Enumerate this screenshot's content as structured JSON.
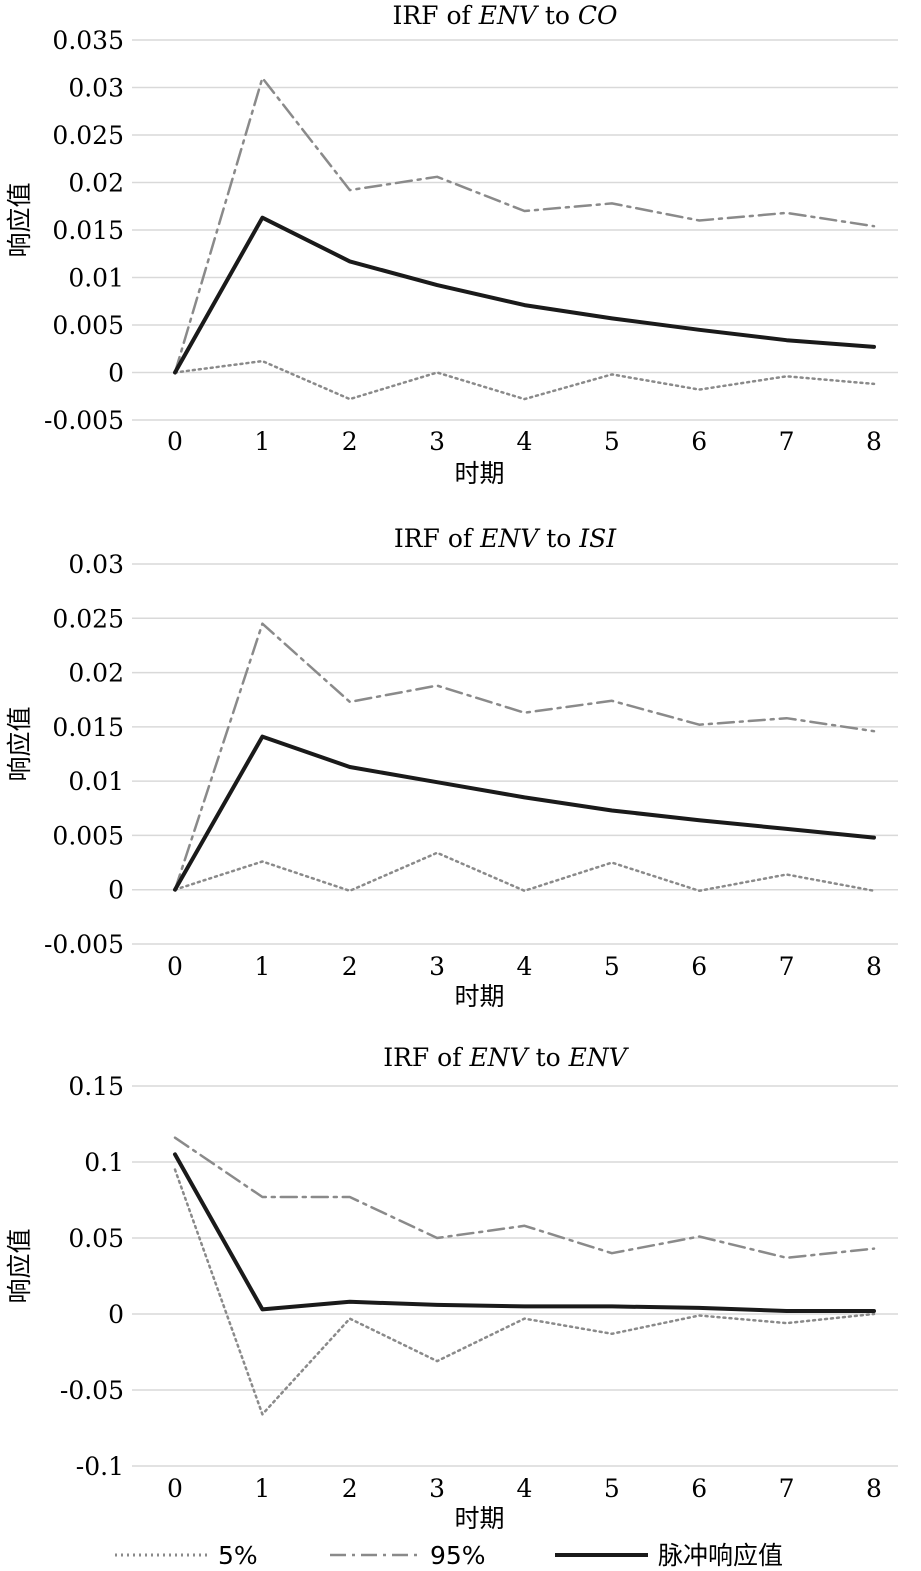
{
  "legend": [
    {
      "label": "5%",
      "style": "dotted",
      "color": "#8a8a8a"
    },
    {
      "label": "95%",
      "style": "dashdot",
      "color": "#8a8a8a"
    },
    {
      "label": "脉冲响应值",
      "style": "solid",
      "color": "#1a1a1a"
    }
  ],
  "chart_data": [
    {
      "type": "line",
      "title": {
        "prefix": "IRF of ",
        "a": "ENV",
        "mid": " to ",
        "b": "CO"
      },
      "xlabel": "时期",
      "ylabel": "响应值",
      "x": [
        0,
        1,
        2,
        3,
        4,
        5,
        6,
        7,
        8
      ],
      "ylim": [
        -0.005,
        0.035
      ],
      "yticks": [
        -0.005,
        0,
        0.005,
        0.01,
        0.015,
        0.02,
        0.025,
        0.03,
        0.035
      ],
      "ytick_labels": [
        "-0.005",
        "0",
        "0.005",
        "0.01",
        "0.015",
        "0.02",
        "0.025",
        "0.03",
        "0.035"
      ],
      "grid": true,
      "series": [
        {
          "name": "5%",
          "values": [
            0,
            0.0012,
            -0.0028,
            0,
            -0.0028,
            -0.0002,
            -0.0018,
            -0.0004,
            -0.0012
          ]
        },
        {
          "name": "95%",
          "values": [
            0,
            0.031,
            0.0192,
            0.0206,
            0.017,
            0.0178,
            0.016,
            0.0168,
            0.0154
          ]
        },
        {
          "name": "脉冲响应值",
          "values": [
            0,
            0.0163,
            0.0117,
            0.0092,
            0.0071,
            0.0057,
            0.0045,
            0.0034,
            0.0027
          ]
        }
      ]
    },
    {
      "type": "line",
      "title": {
        "prefix": "IRF of ",
        "a": "ENV",
        "mid": " to ",
        "b": "ISI"
      },
      "xlabel": "时期",
      "ylabel": "响应值",
      "x": [
        0,
        1,
        2,
        3,
        4,
        5,
        6,
        7,
        8
      ],
      "ylim": [
        -0.005,
        0.03
      ],
      "yticks": [
        -0.005,
        0,
        0.005,
        0.01,
        0.015,
        0.02,
        0.025,
        0.03
      ],
      "ytick_labels": [
        "-0.005",
        "0",
        "0.005",
        "0.01",
        "0.015",
        "0.02",
        "0.025",
        "0.03"
      ],
      "grid": true,
      "series": [
        {
          "name": "5%",
          "values": [
            0,
            0.0026,
            -0.0001,
            0.0034,
            -0.0001,
            0.0025,
            -0.0001,
            0.0014,
            -0.0001
          ]
        },
        {
          "name": "95%",
          "values": [
            0,
            0.0245,
            0.0173,
            0.0188,
            0.0163,
            0.0174,
            0.0152,
            0.0158,
            0.0146
          ]
        },
        {
          "name": "脉冲响应值",
          "values": [
            0,
            0.0141,
            0.0113,
            0.0099,
            0.0085,
            0.0073,
            0.0064,
            0.0056,
            0.0048
          ]
        }
      ]
    },
    {
      "type": "line",
      "title": {
        "prefix": "IRF of ",
        "a": "ENV",
        "mid": " to ",
        "b": "ENV"
      },
      "xlabel": "时期",
      "ylabel": "响应值",
      "x": [
        0,
        1,
        2,
        3,
        4,
        5,
        6,
        7,
        8
      ],
      "ylim": [
        -0.1,
        0.15
      ],
      "yticks": [
        -0.1,
        -0.05,
        0,
        0.05,
        0.1,
        0.15
      ],
      "ytick_labels": [
        "-0.1",
        "-0.05",
        "0",
        "0.05",
        "0.1",
        "0.15"
      ],
      "grid": true,
      "series": [
        {
          "name": "5%",
          "values": [
            0.095,
            -0.066,
            -0.003,
            -0.031,
            -0.003,
            -0.013,
            -0.001,
            -0.006,
            0
          ]
        },
        {
          "name": "95%",
          "values": [
            0.116,
            0.077,
            0.077,
            0.05,
            0.058,
            0.04,
            0.051,
            0.037,
            0.043
          ]
        },
        {
          "name": "脉冲响应值",
          "values": [
            0.105,
            0.003,
            0.008,
            0.006,
            0.005,
            0.005,
            0.004,
            0.002,
            0.002
          ]
        }
      ]
    }
  ]
}
